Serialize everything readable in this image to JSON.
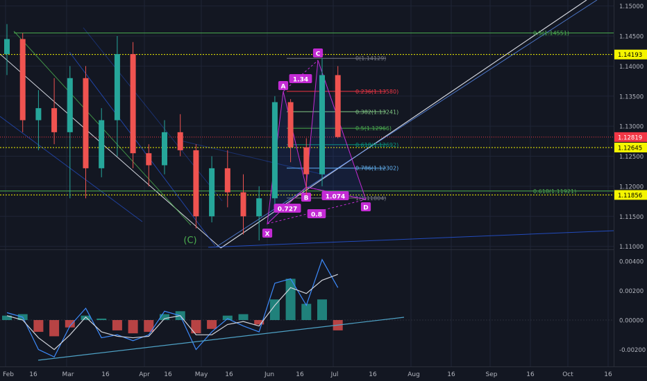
{
  "colors": {
    "background": "#131722",
    "up": "#26a69a",
    "down": "#ef5350",
    "grid": "#1f2536",
    "axis_text": "#b2b5be",
    "purple": "#c32bd4",
    "yellow": "#f5f500",
    "green_line": "#4caf50",
    "blue_line": "#2962ff",
    "white_line": "#d1d4dc",
    "price_badge": "#f23645"
  },
  "price_axis": {
    "ticks": [
      "1.15000",
      "1.14500",
      "1.14000",
      "1.13500",
      "1.13000",
      "1.12500",
      "1.12000",
      "1.11500",
      "1.11000"
    ],
    "badges": {
      "yellow_top": "1.14193",
      "last_price": "1.12819",
      "yellow_mid": "1.12645",
      "yellow_low": "1.11856"
    }
  },
  "time_axis": {
    "ticks": [
      "Feb",
      "16",
      "Mar",
      "16",
      "Apr",
      "16",
      "May",
      "16",
      "Jun",
      "16",
      "Jul",
      "16",
      "Aug",
      "16",
      "Sep",
      "16",
      "Oct",
      "16"
    ]
  },
  "fib_labels": {
    "f0": "0(1.14129)",
    "f236": "0.236(1.13580)",
    "f382": "0.382(1.13241)",
    "f5": "0.5(1.12966)",
    "f618": "0.618(1.12692)",
    "f786": "0.786(1.12302)",
    "f1": "1(1.11804)",
    "big_5": "0.5(1.14551)",
    "big_618": "0.618(1.11921)"
  },
  "pattern": {
    "points": {
      "x": "X",
      "a": "A",
      "b": "B",
      "c": "C",
      "d": "D"
    },
    "ratios": {
      "xab": "0.727",
      "abc": "1.34",
      "bcd": "1.074",
      "xad": "0.8"
    },
    "wave_label": "(C)"
  },
  "osc_axis": {
    "ticks": [
      "0.00400",
      "0.00200",
      "0.00000",
      "-0.00200"
    ]
  },
  "chart_data": {
    "type": "candlestick",
    "main": {
      "x_axis": "date",
      "ylim": [
        1.1095,
        1.151
      ],
      "ohlc": [
        {
          "x": "Feb 3",
          "open": 1.142,
          "high": 1.147,
          "low": 1.1385,
          "close": 1.1445
        },
        {
          "x": "Feb 10",
          "open": 1.1445,
          "high": 1.1455,
          "low": 1.129,
          "close": 1.131
        },
        {
          "x": "Feb 17",
          "open": 1.131,
          "high": 1.136,
          "low": 1.126,
          "close": 1.133
        },
        {
          "x": "Feb 24",
          "open": 1.133,
          "high": 1.138,
          "low": 1.127,
          "close": 1.129
        },
        {
          "x": "Mar 3",
          "open": 1.129,
          "high": 1.14,
          "low": 1.118,
          "close": 1.138
        },
        {
          "x": "Mar 10",
          "open": 1.138,
          "high": 1.14,
          "low": 1.118,
          "close": 1.123
        },
        {
          "x": "Mar 17",
          "open": 1.123,
          "high": 1.133,
          "low": 1.1215,
          "close": 1.131
        },
        {
          "x": "Mar 24",
          "open": 1.131,
          "high": 1.145,
          "low": 1.125,
          "close": 1.142
        },
        {
          "x": "Mar 31",
          "open": 1.142,
          "high": 1.144,
          "low": 1.123,
          "close": 1.1255
        },
        {
          "x": "Apr 7",
          "open": 1.1255,
          "high": 1.127,
          "low": 1.12,
          "close": 1.1235
        },
        {
          "x": "Apr 14",
          "open": 1.1235,
          "high": 1.131,
          "low": 1.122,
          "close": 1.129
        },
        {
          "x": "Apr 21",
          "open": 1.129,
          "high": 1.132,
          "low": 1.125,
          "close": 1.126
        },
        {
          "x": "Apr 28",
          "open": 1.126,
          "high": 1.127,
          "low": 1.113,
          "close": 1.115
        },
        {
          "x": "May 5",
          "open": 1.115,
          "high": 1.125,
          "low": 1.114,
          "close": 1.123
        },
        {
          "x": "May 12",
          "open": 1.123,
          "high": 1.126,
          "low": 1.1165,
          "close": 1.119
        },
        {
          "x": "May 19",
          "open": 1.119,
          "high": 1.122,
          "low": 1.112,
          "close": 1.115
        },
        {
          "x": "May 26",
          "open": 1.115,
          "high": 1.12,
          "low": 1.111,
          "close": 1.118
        },
        {
          "x": "Jun 2",
          "open": 1.118,
          "high": 1.135,
          "low": 1.117,
          "close": 1.134
        },
        {
          "x": "Jun 9",
          "open": 1.134,
          "high": 1.1345,
          "low": 1.124,
          "close": 1.1265
        },
        {
          "x": "Jun 16",
          "open": 1.1265,
          "high": 1.128,
          "low": 1.1185,
          "close": 1.122
        },
        {
          "x": "Jun 23",
          "open": 1.122,
          "high": 1.1413,
          "low": 1.12,
          "close": 1.1385
        },
        {
          "x": "Jun 30",
          "open": 1.1385,
          "high": 1.14,
          "low": 1.128,
          "close": 1.1282
        }
      ],
      "horizontal_levels": [
        1.14551,
        1.14193,
        1.12645,
        1.11921,
        1.11856
      ],
      "last_price": 1.12819,
      "fib_levels": [
        1.14129,
        1.1358,
        1.13241,
        1.12966,
        1.12692,
        1.12302,
        1.11804
      ]
    },
    "oscillator": {
      "ylim": [
        -0.0031,
        0.0047
      ],
      "histogram": [
        0.0003,
        0.0004,
        -0.0008,
        -0.0011,
        -0.0005,
        0.0003,
        0.0001,
        -0.0007,
        -0.0009,
        -0.0008,
        0.0004,
        0.0006,
        -0.0009,
        -0.0006,
        0.0003,
        0.0004,
        -0.0003,
        0.0014,
        0.0028,
        0.0011,
        0.0014,
        -0.0007
      ],
      "macd": [
        0.0005,
        0.0002,
        -0.002,
        -0.0025,
        -0.0004,
        0.0008,
        -0.0012,
        -0.001,
        -0.0014,
        -0.001,
        0.0006,
        0.0003,
        -0.002,
        -0.0008,
        0.0001,
        -0.0004,
        -0.0008,
        0.0025,
        0.0028,
        0.001,
        0.0041,
        0.0022
      ],
      "signal": [
        0.0003,
        0.0,
        -0.0012,
        -0.002,
        -0.001,
        0.0002,
        -0.0008,
        -0.0011,
        -0.0012,
        -0.0011,
        0.0001,
        0.0003,
        -0.001,
        -0.001,
        -0.0003,
        -0.0001,
        -0.0004,
        0.001,
        0.0022,
        0.0018,
        0.0027,
        0.0031
      ]
    }
  }
}
